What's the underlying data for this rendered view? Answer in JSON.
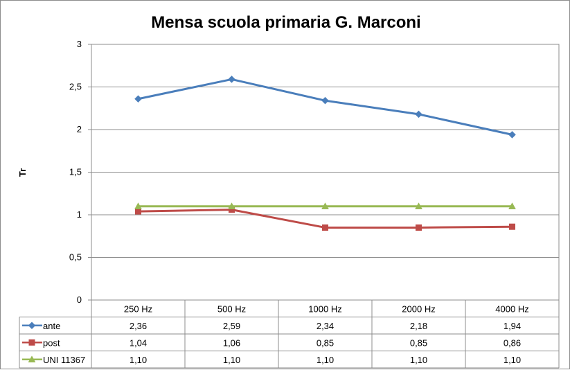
{
  "chart_data": {
    "type": "line",
    "title": "Mensa scuola primaria G. Marconi",
    "xlabel": "",
    "ylabel": "Tr",
    "ylim": [
      0,
      3
    ],
    "yticks": [
      "0",
      "0,5",
      "1",
      "1,5",
      "2",
      "2,5",
      "3"
    ],
    "grid": true,
    "legend": "data-table",
    "categories": [
      "250 Hz",
      "500 Hz",
      "1000 Hz",
      "2000 Hz",
      "4000 Hz"
    ],
    "series": [
      {
        "name": "ante",
        "values": [
          2.36,
          2.59,
          2.34,
          2.18,
          1.94
        ],
        "labels": [
          "2,36",
          "2,59",
          "2,34",
          "2,18",
          "1,94"
        ],
        "color": "#4a7ebb",
        "marker": "diamond"
      },
      {
        "name": "post",
        "values": [
          1.04,
          1.06,
          0.85,
          0.85,
          0.86
        ],
        "labels": [
          "1,04",
          "1,06",
          "0,85",
          "0,85",
          "0,86"
        ],
        "color": "#be4b48",
        "marker": "square"
      },
      {
        "name": "UNI 11367",
        "values": [
          1.1,
          1.1,
          1.1,
          1.1,
          1.1
        ],
        "labels": [
          "1,10",
          "1,10",
          "1,10",
          "1,10",
          "1,10"
        ],
        "color": "#98b954",
        "marker": "triangle"
      }
    ]
  }
}
